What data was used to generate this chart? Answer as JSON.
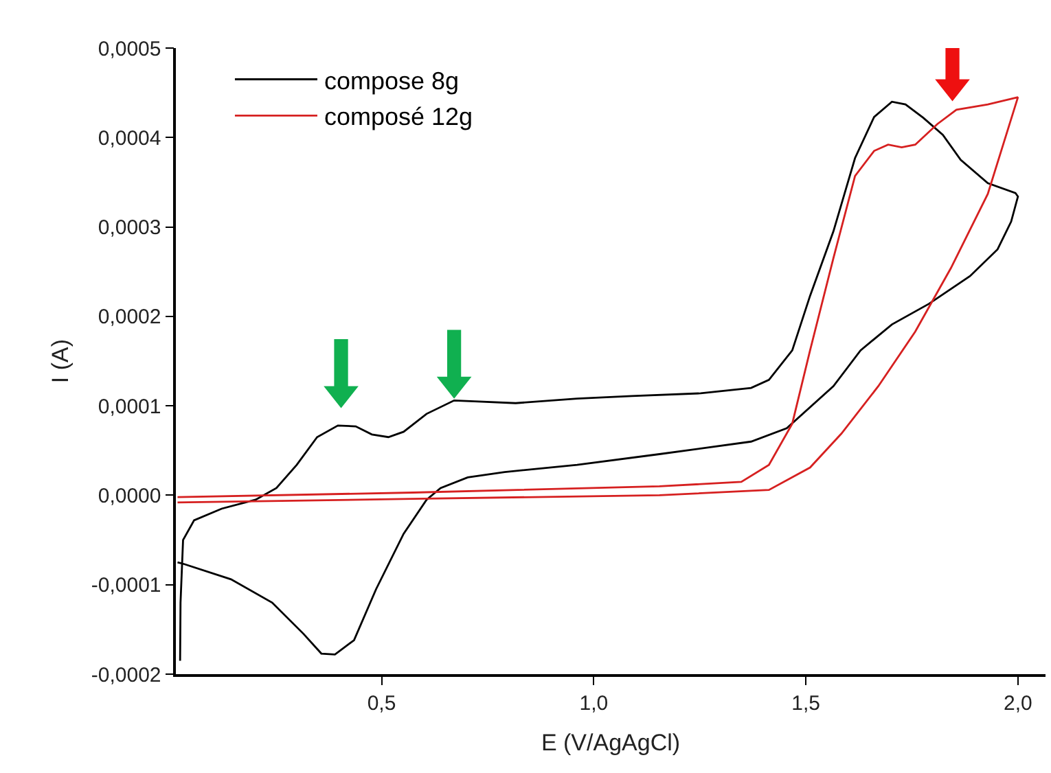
{
  "chart_data": {
    "type": "line",
    "xlabel": "E (V/AgAgCl)",
    "ylabel": "I (A)",
    "xlim": [
      0.015,
      2.065
    ],
    "ylim": [
      -0.0002,
      0.0005
    ],
    "xticks": [
      {
        "value": 0.5,
        "label": "0,5"
      },
      {
        "value": 1.0,
        "label": "1,0"
      },
      {
        "value": 1.5,
        "label": "1,5"
      },
      {
        "value": 2.0,
        "label": "2,0"
      }
    ],
    "yticks": [
      {
        "value": -0.0002,
        "label": "-0,0002"
      },
      {
        "value": -0.0001,
        "label": "-0,0001"
      },
      {
        "value": 0,
        "label": "0,0000"
      },
      {
        "value": 0.0001,
        "label": "0,0001"
      },
      {
        "value": 0.0002,
        "label": "0,0002"
      },
      {
        "value": 0.0003,
        "label": "0,0003"
      },
      {
        "value": 0.0004,
        "label": "0,0004"
      },
      {
        "value": 0.0005,
        "label": "0,0005"
      }
    ],
    "grid": false,
    "legend": "top left",
    "marker": "none",
    "line_style": "solid",
    "series": [
      {
        "name": "compose 8g",
        "color": "#000000",
        "x": [
          0.025,
          0.026,
          0.032,
          0.058,
          0.123,
          0.203,
          0.252,
          0.3,
          0.348,
          0.397,
          0.439,
          0.477,
          0.516,
          0.552,
          0.606,
          0.671,
          0.719,
          0.816,
          0.961,
          1.09,
          1.252,
          1.371,
          1.413,
          1.468,
          1.51,
          1.565,
          1.616,
          1.661,
          1.703,
          1.735,
          1.777,
          1.823,
          1.865,
          1.929,
          1.994,
          2.0,
          1.984,
          1.952,
          1.887,
          1.79,
          1.703,
          1.629,
          1.565,
          1.455,
          1.371,
          1.155,
          0.961,
          0.79,
          0.703,
          0.639,
          0.606,
          0.552,
          0.487,
          0.435,
          0.39,
          0.358,
          0.316,
          0.242,
          0.145,
          0.035,
          0.019
        ],
        "values": [
          -0.000185,
          -0.00012,
          -5e-05,
          -2.8e-05,
          -1.5e-05,
          -5e-06,
          8e-06,
          3.4e-05,
          6.5e-05,
          7.8e-05,
          7.7e-05,
          6.8e-05,
          6.5e-05,
          7.1e-05,
          9.1e-05,
          0.000106,
          0.000105,
          0.000103,
          0.000108,
          0.000111,
          0.000114,
          0.00012,
          0.000129,
          0.000162,
          0.000223,
          0.000295,
          0.000377,
          0.000423,
          0.00044,
          0.000437,
          0.000422,
          0.000403,
          0.000375,
          0.000349,
          0.000338,
          0.000334,
          0.000306,
          0.000275,
          0.000245,
          0.000214,
          0.000191,
          0.000162,
          0.000122,
          7.5e-05,
          6e-05,
          4.6e-05,
          3.4e-05,
          2.6e-05,
          2e-05,
          8e-06,
          -5e-06,
          -4.3e-05,
          -0.000105,
          -0.000162,
          -0.000178,
          -0.000177,
          -0.000155,
          -0.00012,
          -9.4e-05,
          -7.7e-05,
          -7.5e-05
        ]
      },
      {
        "name": "composé 12g",
        "color": "#d62020",
        "x": [
          0.019,
          0.574,
          1.155,
          1.348,
          1.413,
          1.468,
          1.51,
          1.565,
          1.616,
          1.661,
          1.694,
          1.726,
          1.758,
          1.81,
          1.855,
          1.929,
          2.0,
          1.929,
          1.842,
          1.758,
          1.671,
          1.584,
          1.51,
          1.413,
          1.155,
          0.574,
          0.019
        ],
        "values": [
          -2e-06,
          3e-06,
          1e-05,
          1.5e-05,
          3.4e-05,
          8e-05,
          0.000162,
          0.000265,
          0.000357,
          0.000385,
          0.000392,
          0.000389,
          0.000392,
          0.000415,
          0.000431,
          0.000437,
          0.000445,
          0.000337,
          0.000254,
          0.000183,
          0.000122,
          6.9e-05,
          3.1e-05,
          6e-06,
          0.0,
          -4e-06,
          -8e-06
        ]
      }
    ]
  }
}
